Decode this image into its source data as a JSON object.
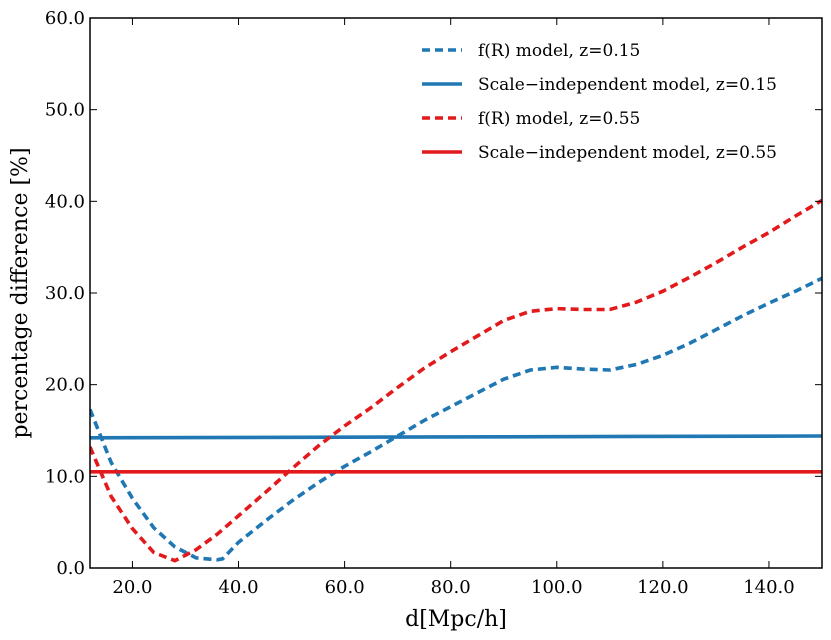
{
  "chart_data": {
    "type": "line",
    "xlabel": "d[Mpc/h]",
    "ylabel": "percentage difference [%]",
    "xlim": [
      12,
      150
    ],
    "ylim": [
      0,
      60
    ],
    "x_ticks": [
      20,
      40,
      60,
      80,
      100,
      120,
      140
    ],
    "x_tick_labels": [
      "20.0",
      "40.0",
      "60.0",
      "80.0",
      "100.0",
      "120.0",
      "140.0"
    ],
    "y_ticks": [
      0,
      10,
      20,
      30,
      40,
      50,
      60
    ],
    "y_tick_labels": [
      "0.0",
      "10.0",
      "20.0",
      "30.0",
      "40.0",
      "50.0",
      "60.0"
    ],
    "grid": false,
    "legend_position": "top-right",
    "series": [
      {
        "name": "f(R) model, z=0.15",
        "color": "#1f77b4",
        "style": "dashed",
        "x": [
          12,
          16,
          20,
          24,
          28,
          32,
          36,
          37,
          40,
          45,
          50,
          55,
          60,
          65,
          70,
          75,
          80,
          85,
          90,
          95,
          100,
          105,
          110,
          115,
          120,
          125,
          130,
          135,
          140,
          145,
          150
        ],
        "y": [
          17.3,
          11.5,
          7.6,
          4.4,
          2.3,
          1.1,
          0.9,
          1.0,
          2.8,
          5.1,
          7.3,
          9.3,
          11.1,
          12.7,
          14.4,
          16.1,
          17.6,
          19.1,
          20.6,
          21.6,
          21.9,
          21.7,
          21.6,
          22.2,
          23.2,
          24.5,
          26.0,
          27.5,
          28.9,
          30.2,
          31.6
        ]
      },
      {
        "name": "Scale−independent model, z=0.15",
        "color": "#1f77b4",
        "style": "solid",
        "x": [
          12,
          150
        ],
        "y": [
          14.2,
          14.4
        ]
      },
      {
        "name": "f(R) model, z=0.55",
        "color": "#e31a1c",
        "style": "dashed",
        "x": [
          12,
          16,
          20,
          24,
          28,
          32,
          36,
          40,
          45,
          50,
          55,
          60,
          65,
          70,
          75,
          80,
          85,
          90,
          95,
          100,
          105,
          110,
          115,
          120,
          125,
          130,
          135,
          140,
          145,
          150
        ],
        "y": [
          13.2,
          7.8,
          4.3,
          1.7,
          0.8,
          2.0,
          3.7,
          5.7,
          8.2,
          10.8,
          13.3,
          15.5,
          17.5,
          19.7,
          21.8,
          23.6,
          25.3,
          27.0,
          28.0,
          28.3,
          28.2,
          28.2,
          29.0,
          30.2,
          31.7,
          33.3,
          35.0,
          36.6,
          38.4,
          40.1
        ]
      },
      {
        "name": "Scale−independent model, z=0.55",
        "color": "#e31a1c",
        "style": "solid",
        "x": [
          12,
          150
        ],
        "y": [
          10.5,
          10.5
        ]
      }
    ]
  }
}
